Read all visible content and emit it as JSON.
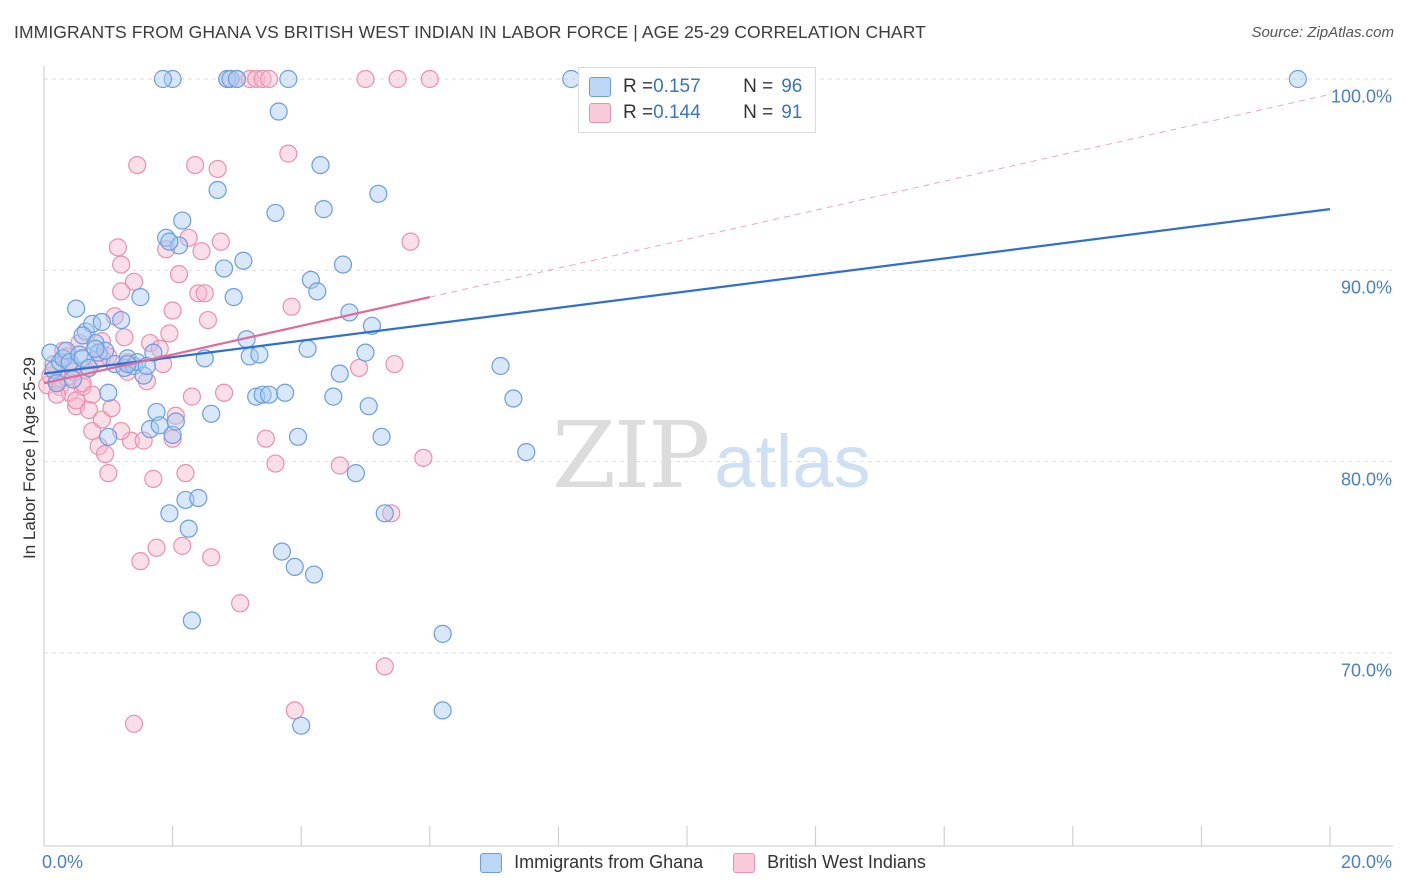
{
  "title": "IMMIGRANTS FROM GHANA VS BRITISH WEST INDIAN IN LABOR FORCE | AGE 25-29 CORRELATION CHART",
  "source": "Source: ZipAtlas.com",
  "watermark": {
    "zip": "ZIP",
    "atlas": "atlas"
  },
  "legend": {
    "rows": [
      {
        "r_label": "R = ",
        "r_value": "0.157",
        "n_label": "N = ",
        "n_value": "96"
      },
      {
        "r_label": "R = ",
        "r_value": "0.144",
        "n_label": "N = ",
        "n_value": "91"
      }
    ]
  },
  "bottom_legend": [
    "Immigrants from Ghana",
    "British West Indians"
  ],
  "colors": {
    "ghana_fill": "#a9c9f2",
    "ghana_stroke": "#6a9ee0",
    "ghana_line": "#2f6fcf",
    "bwi_fill": "#f7b8cc",
    "bwi_stroke": "#ec8fae",
    "bwi_line": "#e06a98",
    "tick_label": "#4a7fc8",
    "grid": "#dedede"
  },
  "chart_data": {
    "type": "scatter",
    "ylabel": "In Labor Force | Age 25-29",
    "xlim": [
      0,
      20
    ],
    "ylim": [
      60.5,
      103
    ],
    "x_tick_labels": [
      "0.0%",
      "20.0%"
    ],
    "y_ticks": [
      70,
      80,
      90,
      100
    ],
    "y_tick_labels": [
      "70.0%",
      "80.0%",
      "90.0%",
      "100.0%"
    ],
    "grid": "horizontal dashed",
    "series": [
      {
        "name": "Immigrants from Ghana",
        "r": 0.157,
        "n": 96,
        "trend": {
          "x0": 0.0,
          "y0": 84.6,
          "x1": 20.0,
          "y1": 93.2
        },
        "points": [
          [
            0.1,
            85.7
          ],
          [
            0.15,
            84.8
          ],
          [
            0.2,
            84.1
          ],
          [
            0.25,
            85.2
          ],
          [
            0.3,
            85.4
          ],
          [
            0.35,
            85.8
          ],
          [
            0.4,
            85.2
          ],
          [
            0.45,
            84.3
          ],
          [
            0.5,
            88.0
          ],
          [
            0.55,
            85.6
          ],
          [
            0.6,
            85.4
          ],
          [
            0.65,
            86.8
          ],
          [
            0.7,
            84.9
          ],
          [
            0.75,
            87.2
          ],
          [
            0.8,
            86.2
          ],
          [
            0.85,
            85.7
          ],
          [
            0.9,
            87.3
          ],
          [
            0.95,
            85.8
          ],
          [
            1.0,
            83.6
          ],
          [
            1.1,
            85.1
          ],
          [
            1.2,
            87.4
          ],
          [
            1.25,
            84.9
          ],
          [
            1.3,
            85.4
          ],
          [
            1.4,
            85.0
          ],
          [
            1.45,
            85.2
          ],
          [
            1.5,
            88.6
          ],
          [
            1.55,
            84.5
          ],
          [
            1.6,
            85.0
          ],
          [
            1.65,
            81.7
          ],
          [
            1.7,
            85.7
          ],
          [
            1.75,
            82.6
          ],
          [
            1.8,
            81.9
          ],
          [
            1.9,
            91.7
          ],
          [
            1.95,
            77.3
          ],
          [
            2.0,
            81.4
          ],
          [
            2.05,
            82.1
          ],
          [
            2.1,
            91.3
          ],
          [
            2.15,
            92.6
          ],
          [
            2.2,
            78.0
          ],
          [
            2.25,
            76.5
          ],
          [
            2.3,
            71.7
          ],
          [
            2.4,
            78.1
          ],
          [
            2.5,
            85.4
          ],
          [
            2.6,
            82.5
          ],
          [
            2.7,
            94.2
          ],
          [
            2.8,
            90.1
          ],
          [
            2.85,
            100.0
          ],
          [
            2.9,
            100.0
          ],
          [
            2.95,
            88.6
          ],
          [
            3.0,
            100.0
          ],
          [
            3.1,
            90.5
          ],
          [
            3.15,
            86.4
          ],
          [
            3.2,
            85.5
          ],
          [
            3.3,
            83.4
          ],
          [
            3.35,
            85.6
          ],
          [
            3.4,
            83.5
          ],
          [
            3.5,
            83.5
          ],
          [
            3.6,
            93.0
          ],
          [
            3.65,
            98.3
          ],
          [
            3.7,
            75.3
          ],
          [
            3.75,
            83.6
          ],
          [
            3.8,
            100.0
          ],
          [
            3.9,
            74.5
          ],
          [
            3.95,
            81.3
          ],
          [
            4.0,
            66.2
          ],
          [
            4.1,
            85.9
          ],
          [
            4.15,
            89.5
          ],
          [
            4.2,
            74.1
          ],
          [
            4.25,
            88.9
          ],
          [
            4.3,
            95.5
          ],
          [
            4.35,
            93.2
          ],
          [
            4.5,
            83.4
          ],
          [
            4.6,
            84.6
          ],
          [
            4.65,
            90.3
          ],
          [
            4.75,
            87.8
          ],
          [
            4.85,
            79.4
          ],
          [
            5.0,
            85.7
          ],
          [
            5.05,
            82.9
          ],
          [
            5.1,
            87.1
          ],
          [
            5.2,
            94.0
          ],
          [
            5.25,
            81.3
          ],
          [
            5.3,
            77.3
          ],
          [
            2.0,
            100.0
          ],
          [
            1.95,
            91.5
          ],
          [
            1.0,
            81.3
          ],
          [
            1.3,
            85.1
          ],
          [
            0.6,
            86.6
          ],
          [
            0.8,
            85.9
          ],
          [
            6.2,
            67.0
          ],
          [
            6.2,
            71.0
          ],
          [
            7.1,
            85.0
          ],
          [
            7.3,
            83.3
          ],
          [
            7.5,
            80.5
          ],
          [
            8.2,
            100.0
          ],
          [
            19.5,
            100.0
          ],
          [
            1.85,
            100.0
          ]
        ]
      },
      {
        "name": "British West Indians",
        "r": 0.144,
        "n": 91,
        "trend": {
          "x0": 0.0,
          "y0": 84.1,
          "x1": 6.0,
          "y1": 88.6
        },
        "trend_ext": {
          "x0": 6.0,
          "y0": 88.6,
          "x1": 20.0,
          "y1": 99.2
        },
        "points": [
          [
            0.05,
            84.0
          ],
          [
            0.1,
            84.5
          ],
          [
            0.15,
            85.1
          ],
          [
            0.2,
            84.2
          ],
          [
            0.25,
            83.9
          ],
          [
            0.3,
            85.8
          ],
          [
            0.35,
            84.4
          ],
          [
            0.4,
            83.6
          ],
          [
            0.45,
            84.7
          ],
          [
            0.5,
            82.9
          ],
          [
            0.55,
            86.2
          ],
          [
            0.6,
            83.9
          ],
          [
            0.65,
            84.8
          ],
          [
            0.7,
            82.7
          ],
          [
            0.75,
            81.6
          ],
          [
            0.8,
            85.3
          ],
          [
            0.85,
            80.8
          ],
          [
            0.9,
            82.2
          ],
          [
            0.95,
            80.4
          ],
          [
            1.0,
            79.4
          ],
          [
            1.05,
            82.8
          ],
          [
            1.1,
            87.6
          ],
          [
            1.15,
            91.2
          ],
          [
            1.2,
            90.3
          ],
          [
            1.25,
            86.5
          ],
          [
            1.3,
            85.2
          ],
          [
            1.35,
            81.1
          ],
          [
            1.4,
            89.4
          ],
          [
            1.45,
            95.5
          ],
          [
            1.5,
            74.8
          ],
          [
            1.55,
            81.1
          ],
          [
            1.6,
            84.2
          ],
          [
            1.65,
            86.2
          ],
          [
            1.7,
            79.1
          ],
          [
            1.75,
            75.5
          ],
          [
            1.8,
            85.9
          ],
          [
            1.85,
            85.1
          ],
          [
            1.9,
            91.1
          ],
          [
            1.95,
            86.7
          ],
          [
            2.0,
            87.9
          ],
          [
            2.05,
            82.4
          ],
          [
            2.1,
            89.8
          ],
          [
            2.15,
            75.6
          ],
          [
            2.2,
            79.4
          ],
          [
            2.25,
            91.7
          ],
          [
            2.3,
            83.4
          ],
          [
            2.35,
            95.5
          ],
          [
            2.4,
            88.8
          ],
          [
            2.45,
            91.0
          ],
          [
            2.5,
            88.8
          ],
          [
            2.55,
            87.4
          ],
          [
            2.6,
            75.0
          ],
          [
            2.7,
            95.3
          ],
          [
            2.75,
            91.5
          ],
          [
            2.8,
            83.6
          ],
          [
            2.85,
            100.0
          ],
          [
            3.0,
            100.0
          ],
          [
            3.05,
            72.6
          ],
          [
            3.2,
            100.0
          ],
          [
            3.3,
            100.0
          ],
          [
            3.4,
            100.0
          ],
          [
            3.45,
            81.2
          ],
          [
            3.5,
            100.0
          ],
          [
            3.6,
            79.9
          ],
          [
            3.8,
            96.1
          ],
          [
            3.85,
            88.1
          ],
          [
            3.9,
            67.0
          ],
          [
            4.6,
            79.8
          ],
          [
            4.9,
            84.9
          ],
          [
            5.0,
            100.0
          ],
          [
            5.3,
            69.3
          ],
          [
            5.4,
            77.3
          ],
          [
            5.45,
            85.1
          ],
          [
            5.5,
            100.0
          ],
          [
            5.7,
            91.5
          ],
          [
            5.9,
            80.2
          ],
          [
            6.0,
            100.0
          ],
          [
            0.2,
            83.5
          ],
          [
            0.35,
            85.5
          ],
          [
            0.6,
            84.1
          ],
          [
            0.9,
            86.3
          ],
          [
            1.2,
            81.6
          ],
          [
            1.3,
            84.7
          ],
          [
            2.0,
            81.2
          ],
          [
            1.4,
            66.3
          ],
          [
            0.5,
            83.2
          ],
          [
            0.45,
            84.9
          ],
          [
            0.75,
            83.5
          ],
          [
            1.0,
            85.5
          ],
          [
            1.2,
            88.9
          ],
          [
            0.9,
            85.4
          ]
        ]
      }
    ]
  }
}
